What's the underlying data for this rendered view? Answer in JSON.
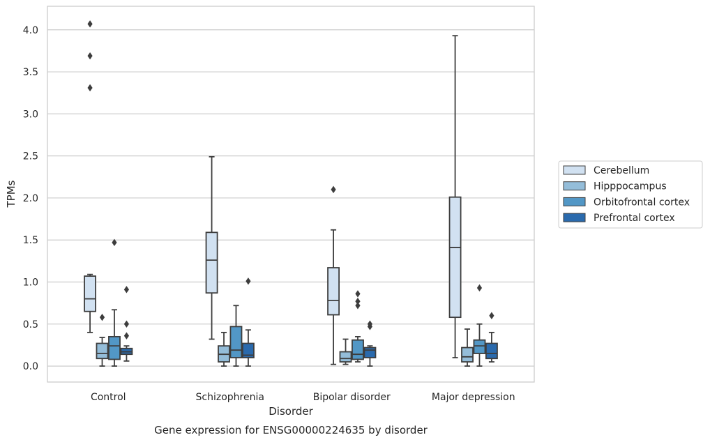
{
  "chart_data": {
    "type": "box",
    "xlabel": "Disorder",
    "ylabel": "TPMs",
    "caption": "Gene expression for ENSG00000224635 by disorder",
    "ylim": [
      -0.19,
      4.28
    ],
    "yticks": [
      "0.0",
      "0.5",
      "1.0",
      "1.5",
      "2.0",
      "2.5",
      "3.0",
      "3.5",
      "4.0"
    ],
    "grid": "horizontal",
    "legend_position": "right",
    "categories": [
      "Control",
      "Schizophrenia",
      "Bipolar disorder",
      "Major depression"
    ],
    "series": [
      {
        "name": "Cerebellum",
        "color": "#d1e1f1",
        "boxes": [
          {
            "whislo": 0.4,
            "q1": 0.65,
            "med": 0.8,
            "q3": 1.07,
            "whishi": 1.09,
            "fliers": [
              3.31,
              3.69,
              4.07
            ]
          },
          {
            "whislo": 0.32,
            "q1": 0.87,
            "med": 1.26,
            "q3": 1.59,
            "whishi": 2.49,
            "fliers": []
          },
          {
            "whislo": 0.02,
            "q1": 0.61,
            "med": 0.78,
            "q3": 1.17,
            "whishi": 1.62,
            "fliers": [
              2.1
            ]
          },
          {
            "whislo": 0.1,
            "q1": 0.58,
            "med": 1.41,
            "q3": 2.01,
            "whishi": 3.93,
            "fliers": []
          }
        ]
      },
      {
        "name": "Hipppocampus",
        "color": "#94bdd9",
        "boxes": [
          {
            "whislo": 0.0,
            "q1": 0.09,
            "med": 0.15,
            "q3": 0.27,
            "whishi": 0.34,
            "fliers": [
              0.58
            ]
          },
          {
            "whislo": 0.0,
            "q1": 0.05,
            "med": 0.14,
            "q3": 0.24,
            "whishi": 0.4,
            "fliers": []
          },
          {
            "whislo": 0.02,
            "q1": 0.05,
            "med": 0.09,
            "q3": 0.17,
            "whishi": 0.32,
            "fliers": []
          },
          {
            "whislo": 0.0,
            "q1": 0.05,
            "med": 0.11,
            "q3": 0.22,
            "whishi": 0.44,
            "fliers": []
          }
        ]
      },
      {
        "name": "Orbitofrontal cortex",
        "color": "#5297c6",
        "boxes": [
          {
            "whislo": 0.0,
            "q1": 0.08,
            "med": 0.24,
            "q3": 0.35,
            "whishi": 0.67,
            "fliers": [
              1.47
            ]
          },
          {
            "whislo": 0.0,
            "q1": 0.1,
            "med": 0.19,
            "q3": 0.47,
            "whishi": 0.72,
            "fliers": []
          },
          {
            "whislo": 0.05,
            "q1": 0.08,
            "med": 0.14,
            "q3": 0.31,
            "whishi": 0.35,
            "fliers": [
              0.72,
              0.77,
              0.86
            ]
          },
          {
            "whislo": 0.0,
            "q1": 0.15,
            "med": 0.24,
            "q3": 0.31,
            "whishi": 0.5,
            "fliers": [
              0.93
            ]
          }
        ]
      },
      {
        "name": "Prefrontal cortex",
        "color": "#2a6aad",
        "boxes": [
          {
            "whislo": 0.06,
            "q1": 0.14,
            "med": 0.17,
            "q3": 0.21,
            "whishi": 0.24,
            "fliers": [
              0.36,
              0.5,
              0.91
            ]
          },
          {
            "whislo": 0.0,
            "q1": 0.1,
            "med": 0.13,
            "q3": 0.27,
            "whishi": 0.43,
            "fliers": [
              1.01
            ]
          },
          {
            "whislo": 0.0,
            "q1": 0.1,
            "med": 0.19,
            "q3": 0.22,
            "whishi": 0.24,
            "fliers": [
              0.47,
              0.5
            ]
          },
          {
            "whislo": 0.05,
            "q1": 0.09,
            "med": 0.15,
            "q3": 0.27,
            "whishi": 0.4,
            "fliers": [
              0.6
            ]
          }
        ]
      }
    ]
  }
}
